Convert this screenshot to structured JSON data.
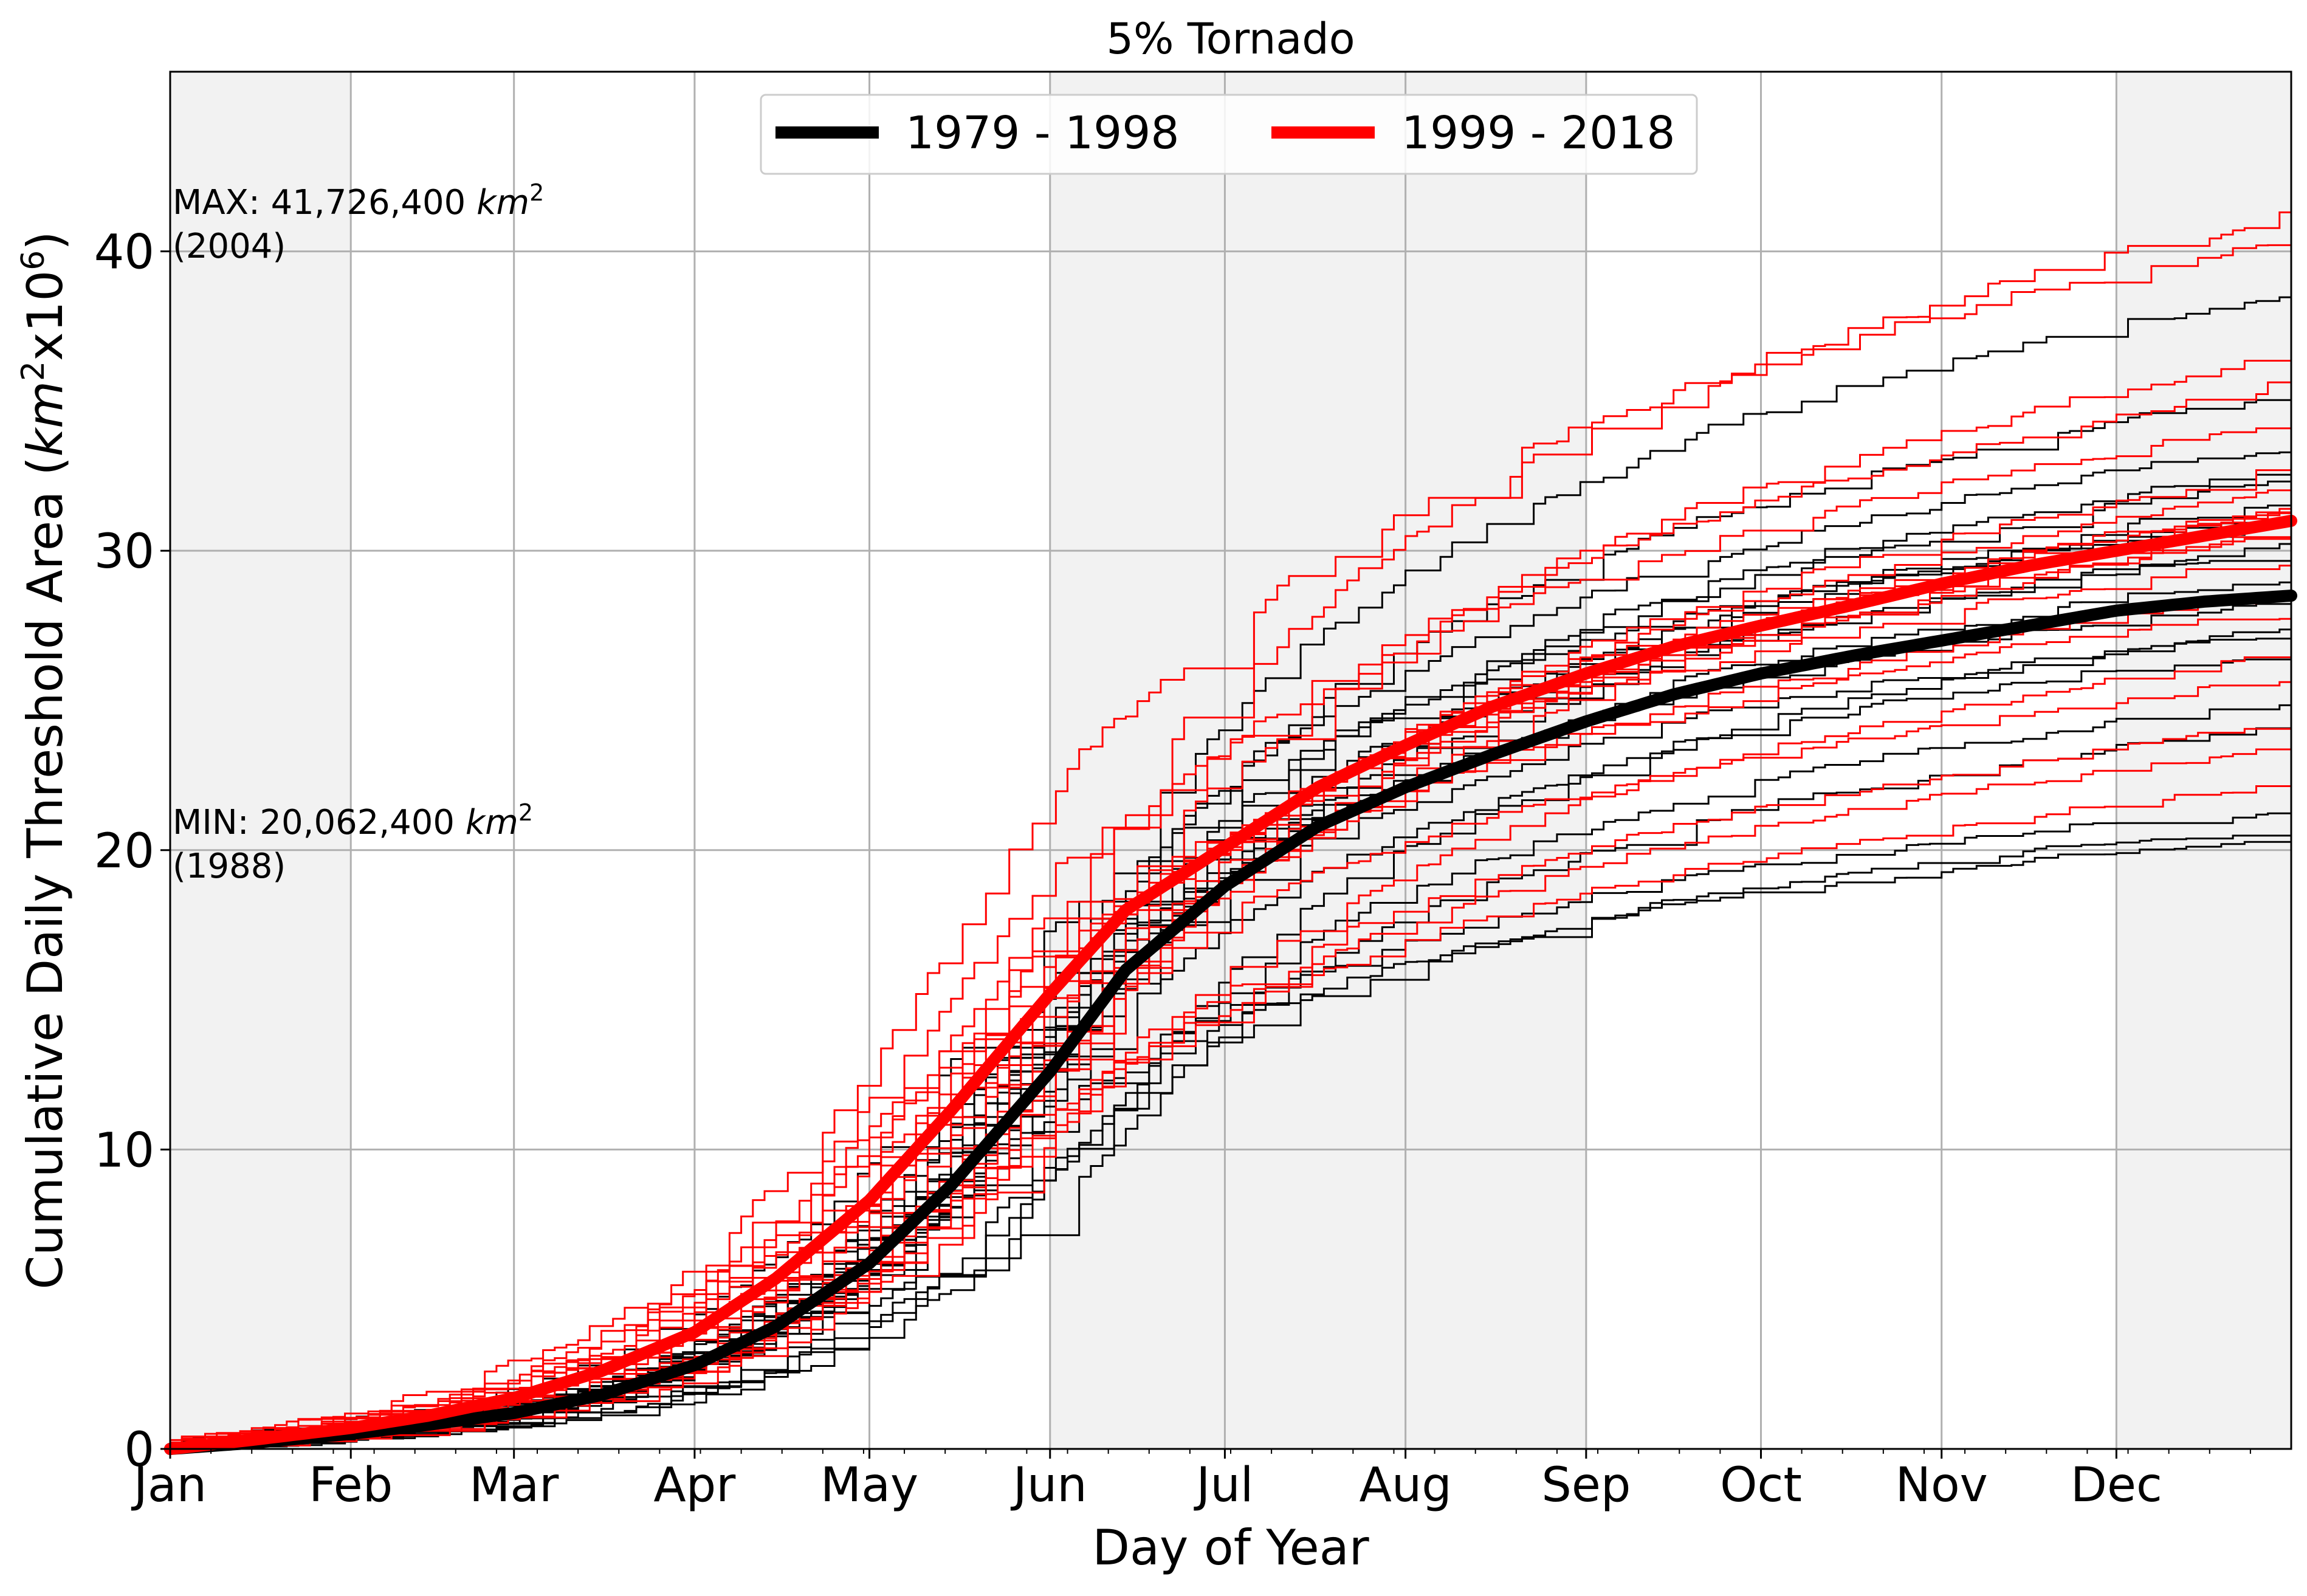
{
  "chart_data": {
    "type": "line",
    "title": "5% Tornado",
    "xlabel": "Day of Year",
    "ylabel": "Cumulative Daily Threshold Area",
    "ylabel_unit_base": "km",
    "ylabel_unit_exp": "2",
    "ylabel_mult_base": "x10",
    "ylabel_mult_exp": "6",
    "xlim": [
      1,
      365
    ],
    "ylim": [
      0,
      46
    ],
    "grid": true,
    "legend_position": "top-center",
    "shaded_months": [
      "Jan",
      "Jun",
      "Jul",
      "Aug",
      "Dec"
    ],
    "shade_color": "#f2f2f2",
    "x_ticks": [
      {
        "label": "Jan",
        "day": 1
      },
      {
        "label": "Feb",
        "day": 32
      },
      {
        "label": "Mar",
        "day": 60
      },
      {
        "label": "Apr",
        "day": 91
      },
      {
        "label": "May",
        "day": 121
      },
      {
        "label": "Jun",
        "day": 152
      },
      {
        "label": "Jul",
        "day": 182
      },
      {
        "label": "Aug",
        "day": 213
      },
      {
        "label": "Sep",
        "day": 244
      },
      {
        "label": "Oct",
        "day": 274
      },
      {
        "label": "Nov",
        "day": 305
      },
      {
        "label": "Dec",
        "day": 335
      }
    ],
    "y_ticks": [
      0,
      10,
      20,
      30,
      40
    ],
    "annotations": {
      "max_label": "MAX: 41,726,400 ",
      "max_unit": "km",
      "max_exp": "2",
      "max_year": "(2004)",
      "max_value": 41.7264,
      "min_label": "MIN: 20,062,400 ",
      "min_unit": "km",
      "min_exp": "2",
      "min_year": "(1988)",
      "min_value": 20.0624
    },
    "series": [
      {
        "name": "1979 - 1998",
        "color": "#000000",
        "x": [
          1,
          15,
          32,
          45,
          60,
          75,
          91,
          105,
          121,
          135,
          152,
          165,
          182,
          198,
          213,
          228,
          244,
          259,
          274,
          290,
          305,
          320,
          335,
          350,
          365
        ],
        "y": [
          0,
          0.2,
          0.5,
          0.8,
          1.2,
          1.8,
          2.8,
          4.1,
          6.2,
          8.8,
          12.6,
          16.0,
          18.8,
          20.8,
          22.1,
          23.2,
          24.3,
          25.2,
          25.9,
          26.5,
          27.0,
          27.5,
          28.0,
          28.3,
          28.5
        ]
      },
      {
        "name": "1999 - 2018",
        "color": "#ff0000",
        "x": [
          1,
          15,
          32,
          45,
          60,
          75,
          91,
          105,
          121,
          135,
          152,
          165,
          182,
          198,
          213,
          228,
          244,
          259,
          274,
          290,
          305,
          320,
          335,
          350,
          365
        ],
        "y": [
          0,
          0.3,
          0.7,
          1.1,
          1.7,
          2.6,
          3.9,
          5.7,
          8.3,
          11.3,
          15.2,
          18.0,
          20.1,
          22.1,
          23.5,
          24.8,
          25.9,
          26.8,
          27.5,
          28.2,
          28.9,
          29.5,
          30.0,
          30.5,
          31.0
        ]
      }
    ],
    "individual_years": {
      "1979-1998": {
        "color": "#000000",
        "final_values": [
          38.4,
          35.0,
          33.2,
          32.5,
          32.1,
          31.5,
          31.0,
          30.5,
          30.1,
          29.8,
          28.9,
          28.0,
          27.5,
          27.0,
          26.5,
          25.0,
          24.2,
          21.1,
          20.6,
          20.1
        ]
      },
      "1999-2018": {
        "color": "#ff0000",
        "final_values": [
          41.7,
          40.2,
          36.9,
          35.5,
          34.0,
          33.2,
          32.3,
          32.0,
          31.7,
          31.4,
          31.1,
          30.4,
          29.4,
          28.6,
          27.7,
          27.0,
          25.4,
          24.3,
          23.6,
          22.2
        ]
      }
    }
  }
}
